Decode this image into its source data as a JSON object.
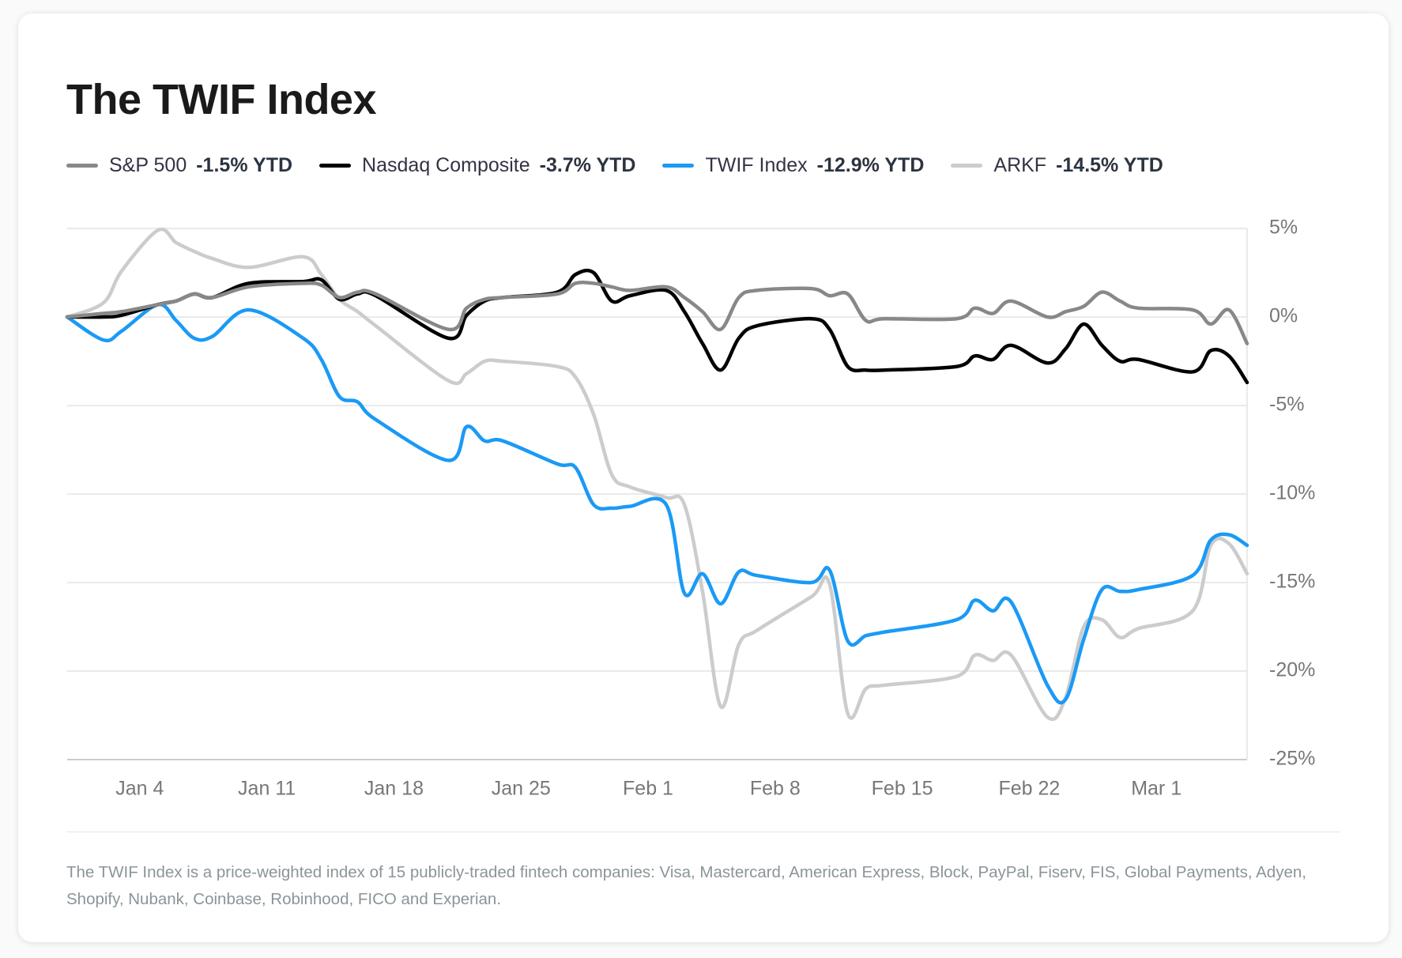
{
  "chart_data": {
    "type": "line",
    "title": "The TWIF Index",
    "x": [
      "Dec 31",
      "Jan 2",
      "Jan 3",
      "Jan 5",
      "Jan 6",
      "Jan 7",
      "Jan 8",
      "Jan 10",
      "Jan 13",
      "Jan 14",
      "Jan 15",
      "Jan 16",
      "Jan 17",
      "Jan 21",
      "Jan 22",
      "Jan 23",
      "Jan 24",
      "Jan 27",
      "Jan 28",
      "Jan 29",
      "Jan 30",
      "Jan 31",
      "Feb 2",
      "Feb 3",
      "Feb 4",
      "Feb 5",
      "Feb 6",
      "Feb 7",
      "Feb 10",
      "Feb 11",
      "Feb 12",
      "Feb 13",
      "Feb 14",
      "Feb 18",
      "Feb 19",
      "Feb 20",
      "Feb 21",
      "Feb 23",
      "Feb 24",
      "Feb 25",
      "Feb 26",
      "Feb 27",
      "Feb 28",
      "Mar 3",
      "Mar 4",
      "Mar 5",
      "Mar 6"
    ],
    "series": [
      {
        "name": "S&P 500",
        "ytd_label": "-1.5% YTD",
        "color": "#888888",
        "values": [
          0,
          0.2,
          0.3,
          0.7,
          0.9,
          1.3,
          1.1,
          1.7,
          1.9,
          1.8,
          1.1,
          1.4,
          1.3,
          -0.7,
          0.5,
          1.0,
          1.1,
          1.3,
          1.9,
          1.9,
          1.7,
          1.5,
          1.7,
          1.1,
          0.3,
          -0.7,
          1.1,
          1.5,
          1.6,
          1.2,
          1.3,
          -0.2,
          -0.1,
          -0.1,
          0.5,
          0.2,
          0.9,
          0.0,
          0.3,
          0.6,
          1.4,
          0.9,
          0.5,
          0.4,
          -0.4,
          0.4,
          -1.5
        ]
      },
      {
        "name": "Nasdaq Composite",
        "ytd_label": "-3.7% YTD",
        "color": "#000000",
        "values": [
          0,
          0,
          0.1,
          0.7,
          0.9,
          1.3,
          1.1,
          1.9,
          2.0,
          2.1,
          1.0,
          1.3,
          1.2,
          -1.2,
          0.1,
          0.9,
          1.1,
          1.4,
          2.4,
          2.5,
          0.9,
          1.2,
          1.5,
          0.3,
          -1.5,
          -3.0,
          -1.2,
          -0.5,
          -0.1,
          -0.7,
          -2.8,
          -3.0,
          -3.0,
          -2.8,
          -2.2,
          -2.4,
          -1.6,
          -2.6,
          -1.8,
          -0.4,
          -1.6,
          -2.5,
          -2.4,
          -3.1,
          -1.9,
          -2.2,
          -3.7
        ]
      },
      {
        "name": "TWIF Index",
        "ytd_label": "-12.9% YTD",
        "color": "#1a9af5",
        "values": [
          0,
          -1.3,
          -0.8,
          0.7,
          -0.2,
          -1.2,
          -1.1,
          0.4,
          -1.2,
          -2.4,
          -4.5,
          -4.8,
          -5.8,
          -8.1,
          -6.2,
          -7.0,
          -7.0,
          -8.3,
          -8.5,
          -10.6,
          -10.8,
          -10.7,
          -10.6,
          -15.6,
          -14.5,
          -16.2,
          -14.4,
          -14.6,
          -15.0,
          -14.3,
          -18.3,
          -18.0,
          -17.8,
          -17.1,
          -16.0,
          -16.6,
          -16.1,
          -20.8,
          -21.6,
          -18.2,
          -15.4,
          -15.5,
          -15.4,
          -14.6,
          -12.6,
          -12.3,
          -12.9
        ]
      },
      {
        "name": "ARKF",
        "ytd_label": "-14.5% YTD",
        "color": "#cccccc",
        "values": [
          0,
          0.8,
          2.6,
          4.9,
          4.2,
          3.7,
          3.3,
          2.8,
          3.4,
          2.4,
          1.0,
          0.3,
          -0.5,
          -3.6,
          -3.2,
          -2.5,
          -2.5,
          -2.8,
          -3.4,
          -5.5,
          -8.9,
          -9.6,
          -10.2,
          -10.6,
          -15.5,
          -22.0,
          -18.5,
          -17.7,
          -15.8,
          -15.1,
          -22.4,
          -21.0,
          -20.8,
          -20.3,
          -19.1,
          -19.4,
          -19.1,
          -22.6,
          -21.5,
          -17.5,
          -17.1,
          -18.1,
          -17.6,
          -16.6,
          -12.9,
          -12.8,
          -14.5
        ]
      }
    ],
    "xlim": [
      "Dec 31",
      "Mar 6"
    ],
    "xticks": [
      "Jan 4",
      "Jan 11",
      "Jan 18",
      "Jan 25",
      "Feb 1",
      "Feb 8",
      "Feb 15",
      "Feb 22",
      "Mar 1"
    ],
    "ylim": [
      -25,
      5
    ],
    "yticks": [
      {
        "value": 5,
        "label": "5%"
      },
      {
        "value": 0,
        "label": "0%"
      },
      {
        "value": -5,
        "label": "-5%"
      },
      {
        "value": -10,
        "label": "-10%"
      },
      {
        "value": -15,
        "label": "-15%"
      },
      {
        "value": -20,
        "label": "-20%"
      },
      {
        "value": -25,
        "label": "-25%"
      }
    ],
    "grid": true,
    "note": "The TWIF Index is a price-weighted index of 15 publicly-traded fintech companies: Visa, Mastercard, American Express, Block, PayPal, Fiserv, FIS, Global Payments, Adyen, Shopify, Nubank, Coinbase, Robinhood, FICO and Experian."
  }
}
